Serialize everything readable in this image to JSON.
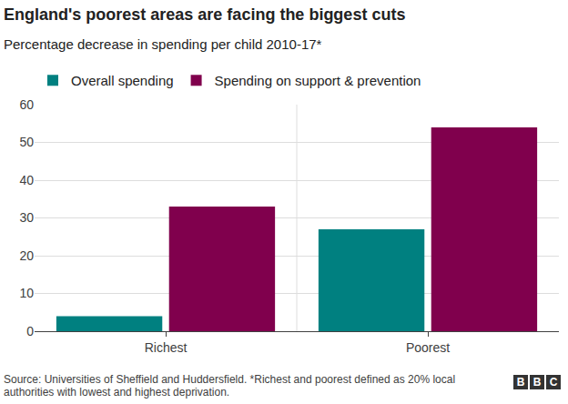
{
  "chart_data": {
    "type": "bar",
    "title": "England's poorest areas are facing the biggest cuts",
    "subtitle": "Percentage decrease in spending per child 2010-17*",
    "categories": [
      "Richest",
      "Poorest"
    ],
    "series": [
      {
        "name": "Overall spending",
        "color": "#008080",
        "values": [
          4,
          27
        ]
      },
      {
        "name": "Spending on support & prevention",
        "color": "#80004d",
        "values": [
          33,
          54
        ]
      }
    ],
    "ylim": [
      0,
      60
    ],
    "yticks": [
      0,
      10,
      20,
      30,
      40,
      50,
      60
    ],
    "grid": true,
    "legend": "top-left",
    "source": "Source: Universities of Sheffield and Huddersfield. *Richest and poorest defined as 20% local authorities with lowest and highest deprivation.",
    "logo": "BBC"
  }
}
